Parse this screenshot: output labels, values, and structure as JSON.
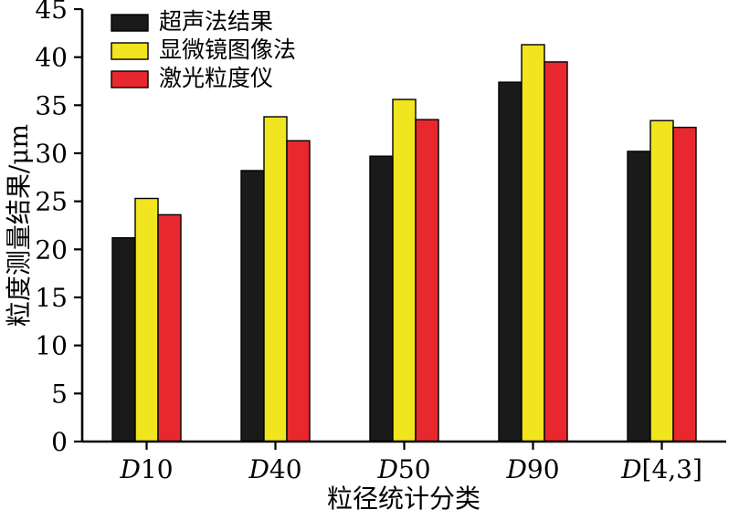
{
  "chart_data": {
    "type": "bar",
    "title": "",
    "categories": [
      "D10",
      "D40",
      "D50",
      "D90",
      "D[4,3]"
    ],
    "series": [
      {
        "name": "超声法结果",
        "color": "#1a1a1a",
        "values": [
          21.2,
          28.2,
          29.7,
          37.4,
          30.2
        ]
      },
      {
        "name": "显微镜图像法",
        "color": "#f0e51e",
        "values": [
          25.3,
          33.8,
          35.6,
          41.3,
          33.4
        ]
      },
      {
        "name": "激光粒度仪",
        "color": "#e8282e",
        "values": [
          23.6,
          31.3,
          33.5,
          39.5,
          32.7
        ]
      }
    ],
    "xlabel": "粒径统计分类",
    "ylabel": "粒度测量结果/μm",
    "ylim": [
      0,
      45
    ],
    "ytick_step": 5,
    "grid": false,
    "legend_position": "top-left",
    "axis_color": "#000000",
    "bar_outline_color": "#000000"
  }
}
